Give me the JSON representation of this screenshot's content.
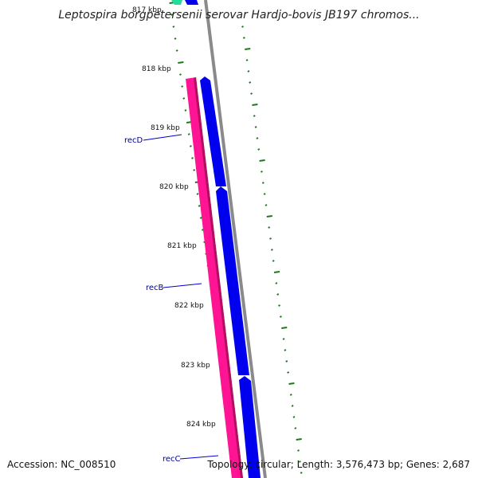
{
  "title": "Leptospira borgpetersenii serovar Hardjo-bovis JB197 chromos...",
  "footer": {
    "accession": "Accession: NC_008510",
    "summary": "Topology: circular; Length: 3,576,473 bp; Genes: 2,687"
  },
  "ticks": [
    "817 kbp",
    "818 kbp",
    "819 kbp",
    "820 kbp",
    "821 kbp",
    "822 kbp",
    "823 kbp",
    "824 kbp"
  ],
  "genes": [
    "recD",
    "recB",
    "recC"
  ],
  "colors": {
    "backbone": "#8a8a8a",
    "forward_cds": "#0000ee",
    "gc_skew": "#ff1493",
    "gc_skew_dark": "#b0105f",
    "other_feature": "#22dd99",
    "tick": "#1a7a1a",
    "label_line": "#0000cd"
  }
}
